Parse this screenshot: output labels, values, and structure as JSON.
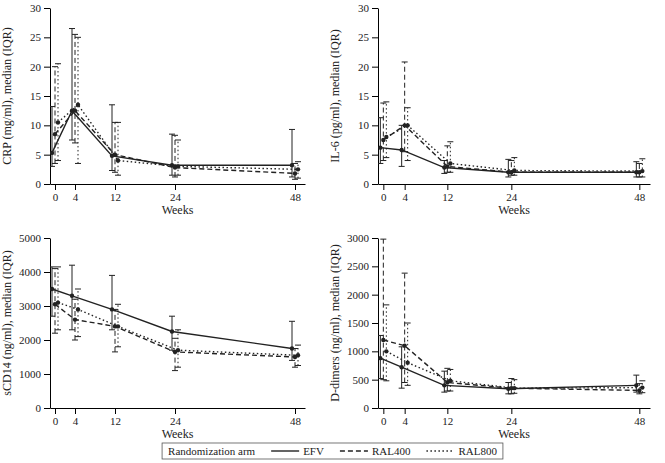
{
  "chart_data": [
    {
      "type": "line",
      "ylabel": "CRP (mg/ml), median (IQR)",
      "xlabel": "Weeks",
      "x": [
        0,
        4,
        12,
        24,
        48
      ],
      "xlim": [
        -1,
        50
      ],
      "xticks": [
        0,
        4,
        12,
        24,
        48
      ],
      "ylim": [
        0,
        30
      ],
      "yticks": [
        0,
        5,
        10,
        15,
        20,
        25,
        30
      ],
      "legend": "bottom",
      "legend_title": "Randomization arm",
      "series": [
        {
          "name": "EFV",
          "color": "#222222",
          "line_style": "solid",
          "marker": "circle",
          "values": [
            5.3,
            12.5,
            4.8,
            3.2,
            3.2
          ],
          "lower": [
            3.0,
            7.5,
            2.3,
            1.5,
            1.2
          ],
          "upper": [
            13.2,
            26.5,
            13.5,
            8.5,
            9.3
          ]
        },
        {
          "name": "RAL400",
          "color": "#222222",
          "line_style": "dashed",
          "marker": "circle",
          "values": [
            8.5,
            12.5,
            5.0,
            2.8,
            1.8
          ],
          "lower": [
            3.5,
            7.0,
            2.0,
            1.2,
            0.8
          ],
          "upper": [
            20.0,
            25.5,
            10.5,
            8.3,
            3.5
          ]
        },
        {
          "name": "RAL800",
          "color": "#222222",
          "line_style": "dotted",
          "marker": "circle",
          "values": [
            10.5,
            13.5,
            4.0,
            3.0,
            2.5
          ],
          "lower": [
            4.0,
            3.5,
            1.5,
            1.5,
            1.0
          ],
          "upper": [
            20.5,
            25.0,
            10.5,
            7.5,
            3.8
          ]
        }
      ]
    },
    {
      "type": "line",
      "ylabel": "IL-6 (pg/ml), median (IQR)",
      "xlabel": "Weeks",
      "x": [
        0,
        4,
        12,
        24,
        48
      ],
      "xlim": [
        -1,
        50
      ],
      "xticks": [
        0,
        4,
        12,
        24,
        48
      ],
      "ylim": [
        0,
        30
      ],
      "yticks": [
        0,
        5,
        10,
        15,
        20,
        25,
        30
      ],
      "series": [
        {
          "color": "#222222",
          "line_style": "solid",
          "marker": "circle",
          "values": [
            6.2,
            5.8,
            2.8,
            2.0,
            2.0
          ],
          "lower": [
            3.5,
            3.0,
            1.8,
            1.2,
            1.2
          ],
          "upper": [
            11.3,
            10.0,
            4.0,
            4.2,
            3.8
          ]
        },
        {
          "color": "#222222",
          "line_style": "dashed",
          "marker": "circle",
          "values": [
            7.5,
            10.0,
            3.0,
            2.0,
            2.0
          ],
          "lower": [
            4.0,
            5.5,
            2.0,
            1.5,
            1.2
          ],
          "upper": [
            13.8,
            20.8,
            6.5,
            4.0,
            3.5
          ]
        },
        {
          "color": "#222222",
          "line_style": "dotted",
          "marker": "circle",
          "values": [
            8.0,
            10.0,
            3.5,
            2.3,
            2.2
          ],
          "lower": [
            4.5,
            4.0,
            2.0,
            1.5,
            1.2
          ],
          "upper": [
            14.0,
            13.0,
            7.2,
            4.5,
            4.3
          ]
        }
      ]
    },
    {
      "type": "line",
      "ylabel": "sCD14 (ng/ml), median (IQR)",
      "xlabel": "Weeks",
      "x": [
        0,
        4,
        12,
        24,
        48
      ],
      "xlim": [
        -1,
        50
      ],
      "xticks": [
        0,
        4,
        12,
        24,
        48
      ],
      "ylim": [
        0,
        5000
      ],
      "yticks": [
        0,
        1000,
        2000,
        3000,
        4000,
        5000
      ],
      "series": [
        {
          "color": "#222222",
          "line_style": "solid",
          "marker": "circle",
          "values": [
            3500,
            3300,
            2900,
            2250,
            1750
          ],
          "lower": [
            2700,
            2300,
            2300,
            1700,
            1400
          ],
          "upper": [
            4150,
            4200,
            3900,
            2700,
            2550
          ]
        },
        {
          "color": "#222222",
          "line_style": "dashed",
          "marker": "circle",
          "values": [
            3050,
            2600,
            2400,
            1650,
            1500
          ],
          "lower": [
            2200,
            2000,
            1650,
            1100,
            1200
          ],
          "upper": [
            4100,
            3200,
            2900,
            2050,
            1750
          ]
        },
        {
          "color": "#222222",
          "line_style": "dotted",
          "marker": "circle",
          "values": [
            3100,
            2900,
            2400,
            1700,
            1550
          ],
          "lower": [
            2300,
            2100,
            1800,
            1200,
            1250
          ],
          "upper": [
            4150,
            3500,
            3050,
            2300,
            1850
          ]
        }
      ]
    },
    {
      "type": "line",
      "ylabel": "D-dimers (ng/ml), median (IQR)",
      "xlabel": "Weeks",
      "x": [
        0,
        4,
        12,
        24,
        48
      ],
      "xlim": [
        -1,
        50
      ],
      "xticks": [
        0,
        4,
        12,
        24,
        48
      ],
      "ylim": [
        0,
        3000
      ],
      "yticks": [
        0,
        500,
        1000,
        1500,
        2000,
        2500,
        3000
      ],
      "series": [
        {
          "color": "#222222",
          "line_style": "solid",
          "marker": "circle",
          "values": [
            880,
            720,
            400,
            340,
            400
          ],
          "lower": [
            520,
            350,
            280,
            250,
            280
          ],
          "upper": [
            1280,
            1080,
            650,
            450,
            580
          ]
        },
        {
          "color": "#222222",
          "line_style": "dashed",
          "marker": "circle",
          "values": [
            1200,
            1100,
            450,
            350,
            310
          ],
          "lower": [
            500,
            450,
            300,
            250,
            250
          ],
          "upper": [
            2980,
            2380,
            700,
            520,
            430
          ]
        },
        {
          "color": "#222222",
          "line_style": "dotted",
          "marker": "circle",
          "values": [
            1000,
            800,
            480,
            350,
            360
          ],
          "lower": [
            480,
            400,
            300,
            260,
            270
          ],
          "upper": [
            1820,
            1500,
            680,
            500,
            480
          ]
        }
      ]
    }
  ]
}
